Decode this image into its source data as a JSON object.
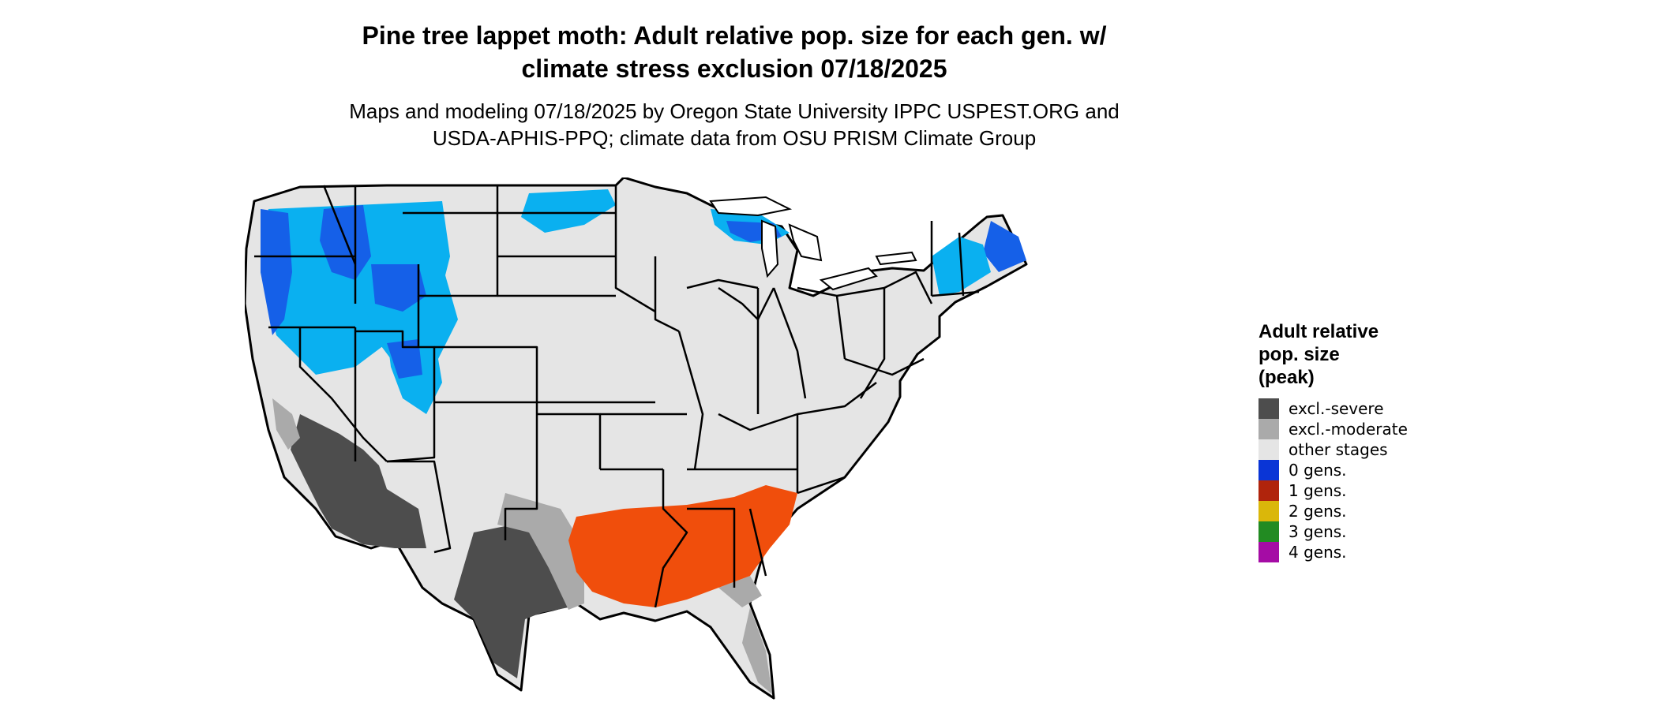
{
  "title": {
    "line1": "Pine tree lappet moth: Adult relative pop. size for each gen. w/",
    "line2": "climate stress exclusion 07/18/2025"
  },
  "subtitle": {
    "line1": "Maps and modeling 07/18/2025 by Oregon State University IPPC USPEST.ORG and",
    "line2": "USDA-APHIS-PPQ; climate data from OSU PRISM Climate Group"
  },
  "legend": {
    "title_line1": "Adult relative",
    "title_line2": "pop. size",
    "title_line3": "(peak)",
    "items": [
      {
        "label": "excl.-severe",
        "color": "#4d4d4d"
      },
      {
        "label": "excl.-moderate",
        "color": "#aaaaaa"
      },
      {
        "label": "other stages",
        "color": "#e5e5e5"
      },
      {
        "label": "0 gens.",
        "color": "#0a35d6"
      },
      {
        "label": "1 gens.",
        "color": "#b0240c"
      },
      {
        "label": "2 gens.",
        "color": "#dab70a"
      },
      {
        "label": "3 gens.",
        "color": "#228b22"
      },
      {
        "label": "4 gens.",
        "color": "#a50ca5"
      }
    ]
  },
  "map_colors": {
    "land": "#e5e5e5",
    "severe": "#4d4d4d",
    "moderate": "#aaaaaa",
    "blue_dark": "#1560e8",
    "blue_light": "#0ab0f0",
    "orange": "#f04e0c",
    "border": "#000000"
  }
}
